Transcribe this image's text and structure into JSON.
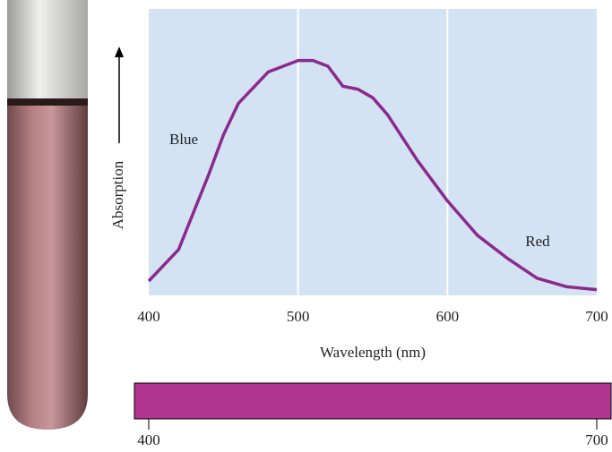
{
  "chart_data": {
    "type": "line",
    "x_label": "Wavelength (nm)",
    "y_label": "Absorption",
    "annotations": [
      "Blue",
      "Red"
    ],
    "x": [
      400,
      420,
      440,
      450,
      460,
      480,
      500,
      510,
      520,
      530,
      540,
      550,
      560,
      580,
      600,
      620,
      640,
      660,
      680,
      700
    ],
    "series": [
      {
        "color": "#8b2a8c",
        "values": [
          0.05,
          0.16,
          0.42,
          0.56,
          0.67,
          0.78,
          0.82,
          0.82,
          0.8,
          0.73,
          0.72,
          0.69,
          0.63,
          0.47,
          0.33,
          0.21,
          0.13,
          0.06,
          0.03,
          0.02
        ]
      }
    ],
    "xlim": [
      400,
      700
    ],
    "xticks": [
      400,
      500,
      600,
      700
    ],
    "ylim": [
      0,
      1
    ],
    "grid": true,
    "background": "#d4e3f4",
    "color_bar": {
      "color": "#b03590",
      "ticks": [
        400,
        700
      ]
    }
  }
}
